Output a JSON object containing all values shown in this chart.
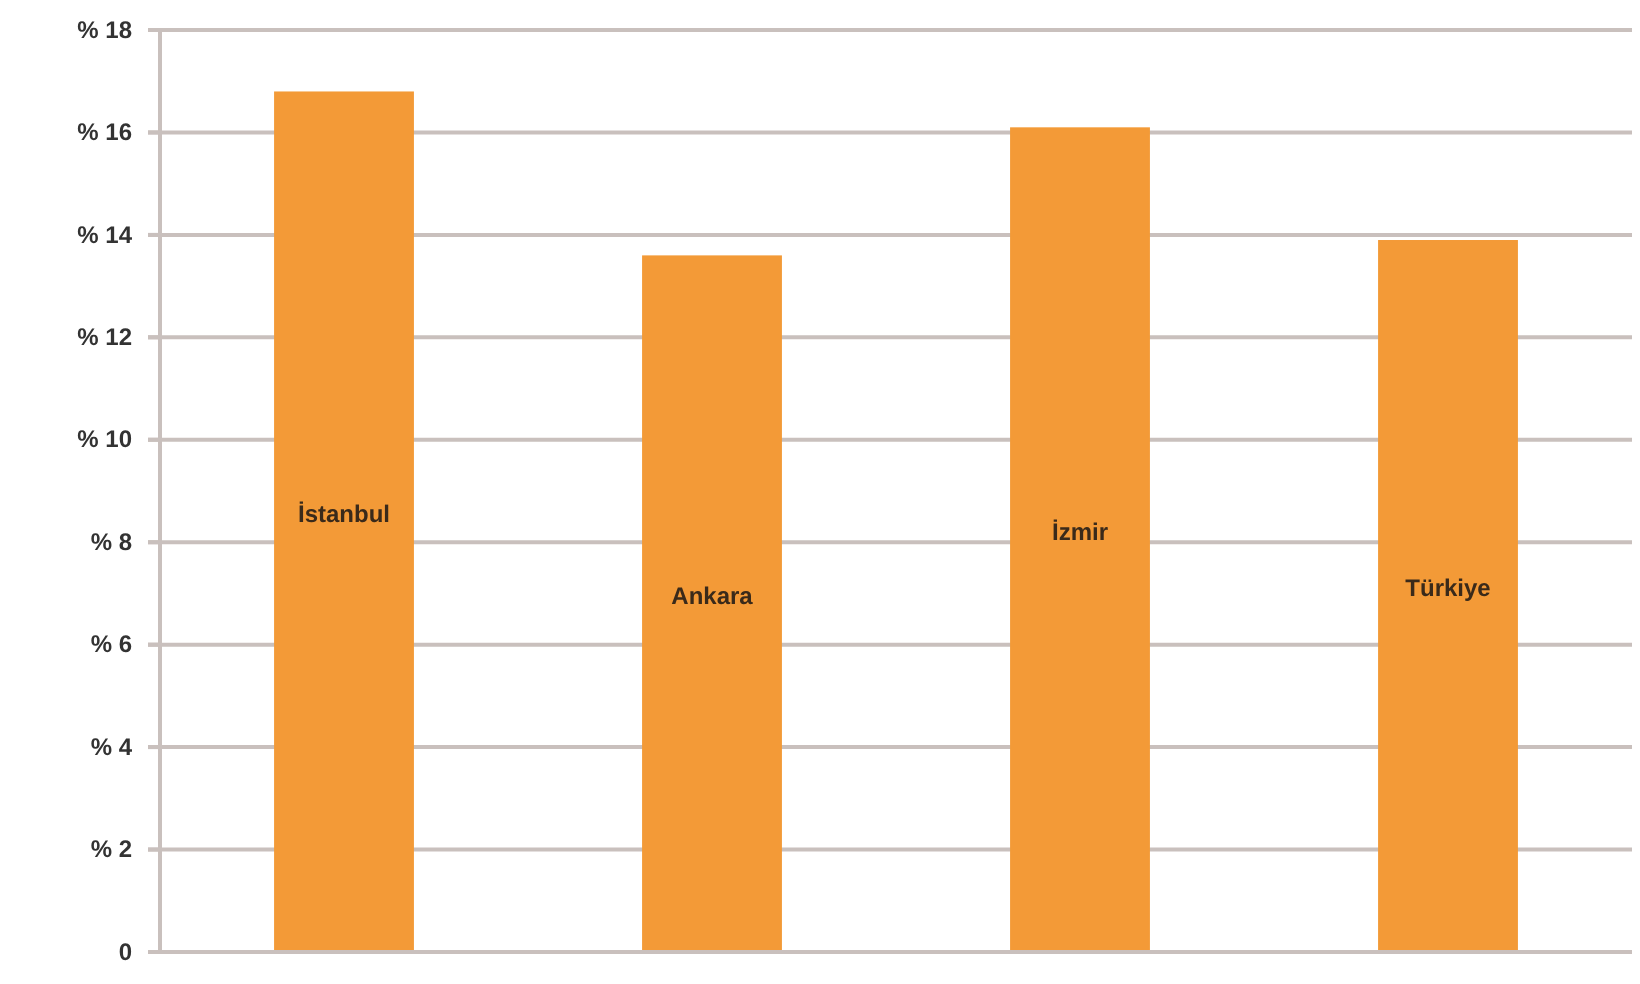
{
  "chart_data": {
    "type": "bar",
    "categories": [
      "İstanbul",
      "Ankara",
      "İzmir",
      "Türkiye"
    ],
    "values": [
      16.8,
      13.6,
      16.1,
      13.9
    ],
    "color": "#f39a37",
    "ylim": [
      0,
      18
    ],
    "yticks": [
      0,
      {
        "value": 2,
        "label": "% 2"
      },
      {
        "value": 4,
        "label": "% 4"
      },
      {
        "value": 6,
        "label": "% 6"
      },
      {
        "value": 8,
        "label": "% 8"
      },
      {
        "value": 10,
        "label": "% 10"
      },
      {
        "value": 12,
        "label": "% 12"
      },
      {
        "value": 14,
        "label": "% 14"
      },
      {
        "value": 16,
        "label": "% 16"
      },
      {
        "value": 18,
        "label": "% 18"
      }
    ],
    "grid": "y"
  }
}
